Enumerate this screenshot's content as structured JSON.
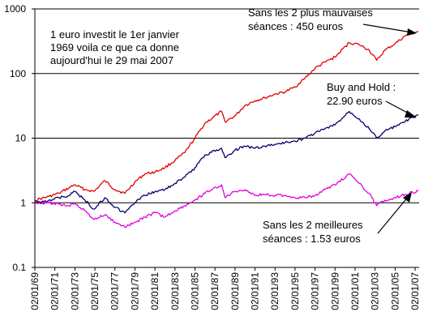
{
  "chart_data": {
    "type": "line",
    "title": "",
    "xlabel": "",
    "ylabel": "",
    "y_scale": "log",
    "ylim": [
      0.1,
      1000
    ],
    "y_ticks": [
      "0.1",
      "1",
      "10",
      "100",
      "1000"
    ],
    "x_tick_labels": [
      "02/01/69",
      "02/01/71",
      "02/01/73",
      "02/01/75",
      "02/01/77",
      "02/01/79",
      "02/01/81",
      "02/01/83",
      "02/01/85",
      "02/01/87",
      "02/01/89",
      "02/01/91",
      "02/01/93",
      "02/01/95",
      "02/01/97",
      "02/01/99",
      "02/01/01",
      "02/01/03",
      "02/01/05",
      "02/01/07"
    ],
    "x_range": [
      "1969-01-02",
      "2007-05-29"
    ],
    "grid": "horizontal",
    "legend": "none",
    "series": [
      {
        "color": "#e00000",
        "x": [
          "1969-01",
          "1970-06",
          "1971-06",
          "1972-06",
          "1973-01",
          "1974-01",
          "1974-12",
          "1976-01",
          "1977-01",
          "1978-01",
          "1979-01",
          "1980-01",
          "1981-01",
          "1982-01",
          "1983-01",
          "1984-01",
          "1985-01",
          "1986-01",
          "1987-09",
          "1988-01",
          "1989-01",
          "1990-01",
          "1991-01",
          "1992-01",
          "1993-01",
          "1994-01",
          "1995-01",
          "1996-01",
          "1997-01",
          "1998-01",
          "1999-01",
          "2000-06",
          "2001-06",
          "2002-06",
          "2003-03",
          "2004-01",
          "2005-01",
          "2006-01",
          "2007-05"
        ],
        "values": [
          1.1,
          1.25,
          1.4,
          1.7,
          1.9,
          1.6,
          1.5,
          2.2,
          1.6,
          1.4,
          2.1,
          2.8,
          3.0,
          3.5,
          4.5,
          6.0,
          10,
          17,
          26,
          18,
          22,
          32,
          38,
          42,
          48,
          52,
          62,
          85,
          120,
          150,
          180,
          300,
          280,
          230,
          160,
          230,
          290,
          380,
          450
        ]
      },
      {
        "color": "#00006e",
        "x": [
          "1969-01",
          "1970-06",
          "1971-06",
          "1972-06",
          "1973-01",
          "1974-01",
          "1974-12",
          "1976-01",
          "1977-01",
          "1978-01",
          "1979-01",
          "1980-01",
          "1981-01",
          "1982-01",
          "1983-01",
          "1984-01",
          "1985-01",
          "1986-01",
          "1987-09",
          "1988-01",
          "1989-01",
          "1990-01",
          "1991-01",
          "1992-01",
          "1993-01",
          "1994-01",
          "1995-01",
          "1996-01",
          "1997-01",
          "1998-01",
          "1999-01",
          "2000-06",
          "2001-06",
          "2002-06",
          "2003-03",
          "2004-01",
          "2005-01",
          "2006-01",
          "2007-05"
        ],
        "values": [
          1.0,
          1.1,
          1.2,
          1.3,
          1.5,
          1.1,
          0.8,
          1.2,
          0.85,
          0.7,
          1.0,
          1.3,
          1.5,
          1.6,
          2.0,
          2.5,
          3.5,
          5.5,
          7.0,
          5.0,
          6.5,
          7.5,
          7.0,
          7.5,
          8.0,
          8.5,
          9.0,
          10,
          12,
          14,
          16,
          26,
          20,
          14,
          10,
          13,
          15,
          18,
          22.9
        ]
      },
      {
        "color": "#e000e0",
        "x": [
          "1969-01",
          "1970-06",
          "1971-06",
          "1972-06",
          "1973-01",
          "1974-01",
          "1974-12",
          "1976-01",
          "1977-01",
          "1978-01",
          "1979-01",
          "1980-01",
          "1981-01",
          "1982-01",
          "1983-01",
          "1984-01",
          "1985-01",
          "1986-01",
          "1987-09",
          "1988-01",
          "1989-01",
          "1990-01",
          "1991-01",
          "1992-01",
          "1993-01",
          "1994-01",
          "1995-01",
          "1996-01",
          "1997-01",
          "1998-01",
          "1999-01",
          "2000-06",
          "2001-06",
          "2002-06",
          "2003-03",
          "2004-01",
          "2005-01",
          "2006-01",
          "2007-05"
        ],
        "values": [
          1.0,
          1.0,
          0.95,
          0.9,
          1.0,
          0.75,
          0.55,
          0.65,
          0.5,
          0.42,
          0.5,
          0.6,
          0.7,
          0.6,
          0.75,
          0.9,
          1.1,
          1.4,
          1.9,
          1.2,
          1.5,
          1.6,
          1.3,
          1.35,
          1.3,
          1.3,
          1.2,
          1.2,
          1.3,
          1.6,
          1.9,
          2.8,
          2.0,
          1.4,
          0.9,
          1.1,
          1.2,
          1.35,
          1.53
        ]
      }
    ],
    "annotations": [
      {
        "lines": [
          "1 euro investit le 1er janvier",
          "1969 voila ce que ca donne",
          "aujourd'hui le 29 mai 2007"
        ]
      },
      {
        "lines": [
          "Sans les 2 plus mauvaises",
          "séances : 450 euros"
        ]
      },
      {
        "lines": [
          "Buy and Hold :",
          "22.90 euros"
        ]
      },
      {
        "lines": [
          "Sans les 2 meilleures",
          "séances : 1.53 euros"
        ]
      }
    ]
  }
}
